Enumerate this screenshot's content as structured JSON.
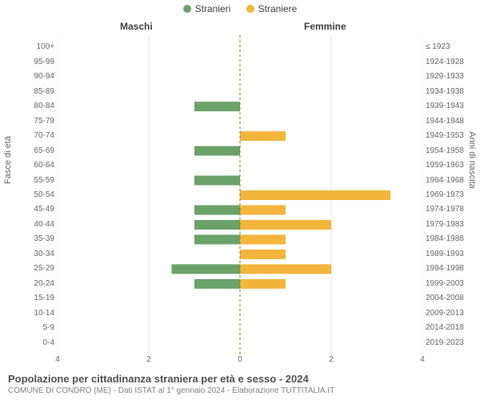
{
  "legend": {
    "male_label": "Stranieri",
    "female_label": "Straniere",
    "male_color": "#6aa269",
    "female_color": "#f3b53b"
  },
  "column_titles": {
    "left": "Maschi",
    "right": "Femmine"
  },
  "axis_titles": {
    "left": "Fasce di età",
    "right": "Anni di nascita"
  },
  "chart": {
    "type": "population-pyramid",
    "background_color": "#ffffff",
    "grid_color": "#e6e6e6",
    "baseline_color": "#808000",
    "baseline_dash": "3 3",
    "xlim": [
      -4,
      4
    ],
    "xtick_step": 2,
    "xtick_labels_left": [
      "4",
      "2",
      "0"
    ],
    "xtick_labels_right": [
      "0",
      "2",
      "4"
    ],
    "bar_height_ratio": 0.65,
    "male_color": "#6aa269",
    "female_color": "#f3b53b",
    "tick_fontsize": 10,
    "tick_color": "#666666",
    "rows": [
      {
        "age": "100+",
        "birth": "≤ 1923",
        "m": 0,
        "f": 0
      },
      {
        "age": "95-99",
        "birth": "1924-1928",
        "m": 0,
        "f": 0
      },
      {
        "age": "90-94",
        "birth": "1929-1933",
        "m": 0,
        "f": 0
      },
      {
        "age": "85-89",
        "birth": "1934-1938",
        "m": 0,
        "f": 0
      },
      {
        "age": "80-84",
        "birth": "1939-1943",
        "m": 1,
        "f": 0
      },
      {
        "age": "75-79",
        "birth": "1944-1948",
        "m": 0,
        "f": 0
      },
      {
        "age": "70-74",
        "birth": "1949-1953",
        "m": 0,
        "f": 1
      },
      {
        "age": "65-69",
        "birth": "1954-1958",
        "m": 1,
        "f": 0
      },
      {
        "age": "60-64",
        "birth": "1959-1963",
        "m": 0,
        "f": 0
      },
      {
        "age": "55-59",
        "birth": "1964-1968",
        "m": 1,
        "f": 0
      },
      {
        "age": "50-54",
        "birth": "1969-1973",
        "m": 0,
        "f": 3.3
      },
      {
        "age": "45-49",
        "birth": "1974-1978",
        "m": 1,
        "f": 1
      },
      {
        "age": "40-44",
        "birth": "1979-1983",
        "m": 1,
        "f": 2
      },
      {
        "age": "35-39",
        "birth": "1984-1988",
        "m": 1,
        "f": 1
      },
      {
        "age": "30-34",
        "birth": "1989-1993",
        "m": 0,
        "f": 1
      },
      {
        "age": "25-29",
        "birth": "1994-1998",
        "m": 1.5,
        "f": 2
      },
      {
        "age": "20-24",
        "birth": "1999-2003",
        "m": 1,
        "f": 1
      },
      {
        "age": "15-19",
        "birth": "2004-2008",
        "m": 0,
        "f": 0
      },
      {
        "age": "10-14",
        "birth": "2009-2013",
        "m": 0,
        "f": 0
      },
      {
        "age": "5-9",
        "birth": "2014-2018",
        "m": 0,
        "f": 0
      },
      {
        "age": "0-4",
        "birth": "2019-2023",
        "m": 0,
        "f": 0
      }
    ]
  },
  "footer": {
    "title": "Popolazione per cittadinanza straniera per età e sesso - 2024",
    "subtitle": "COMUNE DI CONDRÒ (ME) - Dati ISTAT al 1° gennaio 2024 - Elaborazione TUTTITALIA.IT"
  }
}
